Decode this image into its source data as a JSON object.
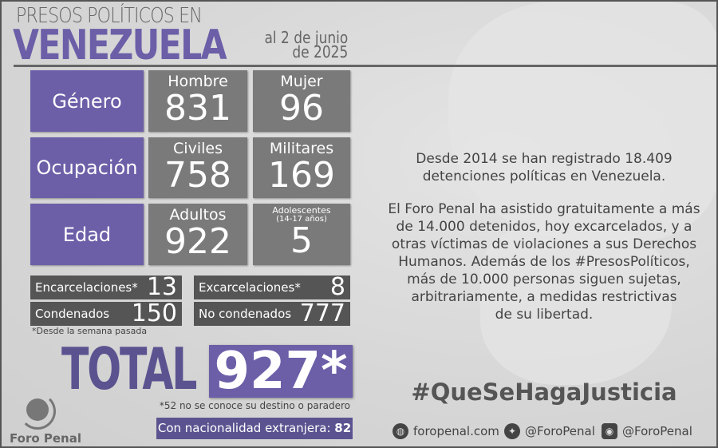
{
  "header": {
    "line1": "PRESOS POLÍTICOS EN",
    "line2": "VENEZUELA",
    "date_line1": "al 2 de junio",
    "date_line2": "de 2025"
  },
  "rows": [
    {
      "category": "Género",
      "items": [
        {
          "label": "Hombre",
          "value": "831"
        },
        {
          "label": "Mujer",
          "value": "96"
        }
      ]
    },
    {
      "category": "Ocupación",
      "items": [
        {
          "label": "Civiles",
          "value": "758"
        },
        {
          "label": "Militares",
          "value": "169"
        }
      ]
    },
    {
      "category": "Edad",
      "items": [
        {
          "label": "Adultos",
          "value": "922"
        },
        {
          "label": "Adolescentes",
          "sublabel": "(14-17 años)",
          "value": "5"
        }
      ]
    }
  ],
  "stats": [
    {
      "label": "Encarcelaciones*",
      "value": "13"
    },
    {
      "label": "Excarcelaciones*",
      "value": "8"
    },
    {
      "label": "Condenados",
      "value": "150"
    },
    {
      "label": "No condenados",
      "value": "777"
    }
  ],
  "footnote": "*Desde la semana pasada",
  "total": {
    "label": "TOTAL",
    "value": "927*",
    "note": "*52 no se conoce su destino o paradero"
  },
  "nationality": {
    "label": "Con nacionalidad extranjera:",
    "value": "82"
  },
  "logo": {
    "text": "Foro Penal"
  },
  "info": {
    "p1": [
      "Desde 2014 se han registrado 18.409",
      "detenciones políticas en Venezuela."
    ],
    "p2": [
      "El Foro Penal ha asistido gratuitamente a más",
      "de 14.000 detenidos, hoy excarcelados, y a",
      "otras víctimas de violaciones a sus Derechos",
      "Humanos. Además de los #PresosPolíticos,",
      "más de 10.000 personas siguen sujetas,",
      "arbitrariamente, a medidas restrictivas",
      "de su libertad."
    ]
  },
  "hashtag": "#QueSeHagaJusticia",
  "social": [
    {
      "icon": "globe-icon",
      "text": "foropenal.com"
    },
    {
      "icon": "twitter-icon",
      "text": "@ForoPenal"
    },
    {
      "icon": "instagram-icon",
      "text": "@ForoPenal"
    }
  ],
  "colors": {
    "purple": "#6c5fa8",
    "grey_box": "#7a7a7a",
    "dark_box": "#555555",
    "background": "#d8d8d8"
  }
}
